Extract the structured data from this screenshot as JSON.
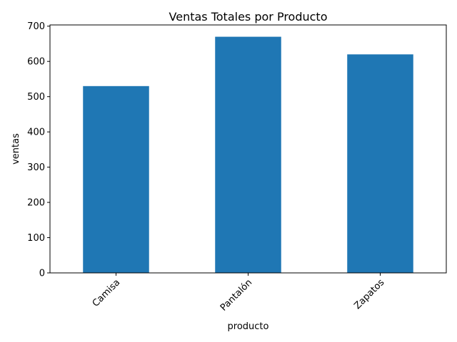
{
  "chart_data": {
    "type": "bar",
    "title": "Ventas Totales por Producto",
    "xlabel": "producto",
    "ylabel": "ventas",
    "categories": [
      "Camisa",
      "Pantalón",
      "Zapatos"
    ],
    "values": [
      530,
      670,
      620
    ],
    "ylim": [
      0,
      703.5
    ],
    "yticks": [
      0,
      100,
      200,
      300,
      400,
      500,
      600,
      700
    ],
    "bar_color": "#1f77b4",
    "grid": false,
    "legend": "none"
  }
}
